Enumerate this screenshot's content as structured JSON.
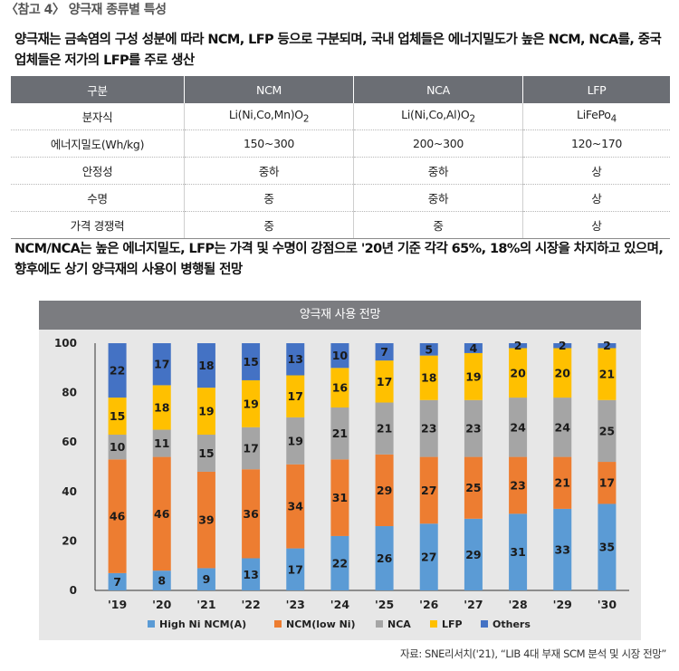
{
  "ref_title": "〈참고 4〉 양극재 종류별 특성",
  "intro": "양극재는 금속염의 구성 성분에 따라 NCM, LFP 등으로 구분되며, 국내 업체들은 에너지밀도가 높은 NCM, NCA를, 중국 업체들은 저가의 LFP를 주로 생산",
  "table": {
    "headers": [
      "구분",
      "NCM",
      "NCA",
      "LFP"
    ],
    "rows": [
      {
        "label": "분자식",
        "ncm": "Li(Ni,Co,Mn)O",
        "ncm_sub": "2",
        "nca": "Li(Ni,Co,Al)O",
        "nca_sub": "2",
        "lfp": "LiFePo",
        "lfp_sub": "4"
      },
      {
        "label": "에너지밀도(Wh/kg)",
        "ncm": "150~300",
        "nca": "200~300",
        "lfp": "120~170"
      },
      {
        "label": "안정성",
        "ncm": "중하",
        "nca": "중하",
        "lfp": "상"
      },
      {
        "label": "수명",
        "ncm": "중",
        "nca": "중하",
        "lfp": "상"
      },
      {
        "label": "가격 경쟁력",
        "ncm": "중",
        "nca": "중",
        "lfp": "상"
      }
    ]
  },
  "outlook": "NCM/NCA는 높은 에너지밀도, LFP는 가격 및 수명이 강점으로 '20년 기준 각각 65%, 18%의 시장을 차지하고 있으며, 향후에도 상기 양극재의 사용이 병행될 전망",
  "chart_title": "양극재 사용 전망",
  "source": "자료: SNE리서치('21), “LIB 4대 부재 SCM 분석 및 시장 전망”",
  "chart_data": {
    "type": "bar",
    "stacked": true,
    "title": "양극재 사용 전망",
    "categories": [
      "'19",
      "'20",
      "'21",
      "'22",
      "'23",
      "'24",
      "'25",
      "'26",
      "'27",
      "'28",
      "'29",
      "'30"
    ],
    "ylim": [
      0,
      100
    ],
    "yticks": [
      0,
      20,
      40,
      60,
      80,
      100
    ],
    "legend_position": "bottom",
    "series": [
      {
        "name": "High Ni NCM(A)",
        "color": "#5b9bd5",
        "values": [
          7,
          8,
          9,
          13,
          17,
          22,
          26,
          27,
          29,
          31,
          33,
          35
        ]
      },
      {
        "name": "NCM(low Ni)",
        "color": "#ed7d31",
        "values": [
          46,
          46,
          39,
          36,
          34,
          31,
          29,
          27,
          25,
          23,
          21,
          17
        ]
      },
      {
        "name": "NCA",
        "color": "#a5a5a5",
        "values": [
          10,
          11,
          15,
          17,
          19,
          21,
          21,
          23,
          23,
          24,
          24,
          25
        ]
      },
      {
        "name": "LFP",
        "color": "#ffc000",
        "values": [
          15,
          18,
          19,
          19,
          17,
          16,
          17,
          18,
          19,
          20,
          20,
          21
        ]
      },
      {
        "name": "Others",
        "color": "#4472c4",
        "values": [
          22,
          17,
          18,
          15,
          13,
          10,
          7,
          5,
          4,
          2,
          2,
          2
        ]
      }
    ]
  }
}
